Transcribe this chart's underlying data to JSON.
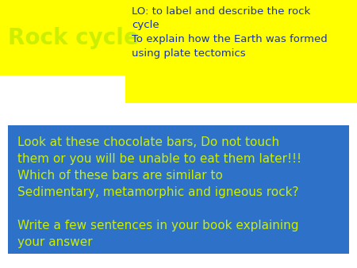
{
  "title": "Rock cycle",
  "title_color": "#ccee00",
  "title_bg": "#ffff00",
  "lo_line1": "LO: to label and describe the rock",
  "lo_line2": "cycle",
  "lo_line3": "To explain how the Earth was formed",
  "lo_line4": "using plate tectomics",
  "lo_text_color": "#1a3399",
  "lo_bg": "#ffff00",
  "box_text": "Look at these chocolate bars, Do not touch\nthem or you will be unable to eat them later!!!\nWhich of these bars are similar to\nSedimentary, metamorphic and igneous rock?\n\nWrite a few sentences in your book explaining\nyour answer",
  "box_text_color": "#ccee00",
  "box_bg": "#2d72c8",
  "bg_color": "#ffffff",
  "fig_w": 4.5,
  "fig_h": 3.38,
  "dpi": 100
}
